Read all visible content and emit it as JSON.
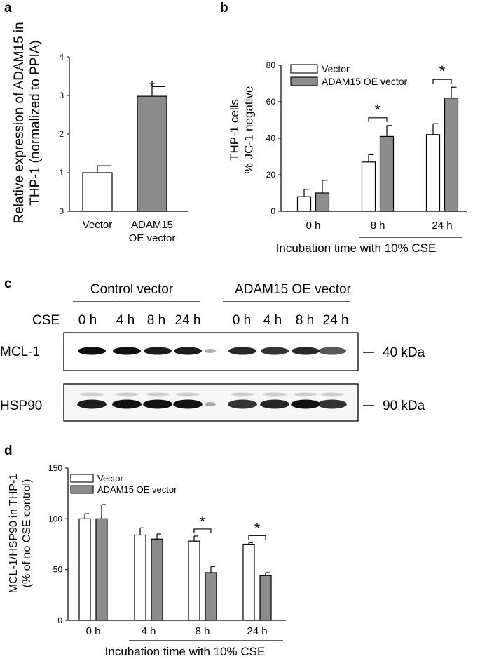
{
  "panels": {
    "a": "a",
    "b": "b",
    "c": "c",
    "d": "d"
  },
  "colors": {
    "vector": "#ffffff",
    "oe": "#8c8c8c",
    "stroke": "#000000"
  },
  "chart_data": [
    {
      "id": "a",
      "type": "bar",
      "categories": [
        "Vector",
        "ADAM15\nOE vector"
      ],
      "category_lines": [
        [
          "Vector"
        ],
        [
          "ADAM15",
          "OE vector"
        ]
      ],
      "values": [
        1.0,
        2.98
      ],
      "errors": [
        0.18,
        0.25
      ],
      "ylim": [
        0,
        4
      ],
      "yticks": [
        "0",
        "1",
        "2",
        "3",
        "4"
      ],
      "ylabel_lines": [
        "Relative expression of ADAM15 in",
        "THP-1 (normalized to PPIA)"
      ],
      "significance": "*"
    },
    {
      "id": "b",
      "type": "bar",
      "categories": [
        "0 h",
        "8 h",
        "24 h"
      ],
      "series": [
        {
          "name": "Vector",
          "values": [
            8,
            27,
            42
          ],
          "errors": [
            4,
            4,
            6
          ]
        },
        {
          "name": "ADAM15 OE vector",
          "values": [
            10,
            41,
            62
          ],
          "errors": [
            7,
            6,
            6
          ]
        }
      ],
      "ylim": [
        0,
        80
      ],
      "yticks": [
        "0",
        "20",
        "40",
        "60",
        "80"
      ],
      "ylabel_lines": [
        "THP-1 cells",
        "% JC-1 negative"
      ],
      "xlabel": "Incubation time with 10% CSE",
      "significance": [
        "",
        "*",
        "*"
      ],
      "legend": "top-left"
    },
    {
      "id": "d",
      "type": "bar",
      "categories": [
        "0 h",
        "4 h",
        "8 h",
        "24 h"
      ],
      "series": [
        {
          "name": "Vector",
          "values": [
            100,
            84,
            78,
            75
          ],
          "errors": [
            5,
            7,
            5,
            1.5
          ]
        },
        {
          "name": "ADAM15 OE vector",
          "values": [
            100,
            80,
            47,
            44
          ],
          "errors": [
            14,
            5,
            6,
            3
          ]
        }
      ],
      "ylim": [
        0,
        150
      ],
      "yticks": [
        "0",
        "50",
        "100",
        "150"
      ],
      "ylabel_lines": [
        "MCL-1/HSP90 in THP-1",
        "(% of no CSE control)"
      ],
      "xlabel": "Incubation time with 10% CSE",
      "significance": [
        "",
        "",
        "*",
        "*"
      ],
      "legend": "top-left"
    }
  ],
  "blot": {
    "groups": [
      "Control vector",
      "ADAM15 OE vector"
    ],
    "cse_label": "CSE",
    "timepoints": [
      "0 h",
      "4 h",
      "8 h",
      "24 h",
      "0 h",
      "4 h",
      "8 h",
      "24 h"
    ],
    "rows": [
      {
        "protein": "MCL-1",
        "marker": "40 kDa"
      },
      {
        "protein": "HSP90",
        "marker": "90 kDa"
      }
    ]
  }
}
